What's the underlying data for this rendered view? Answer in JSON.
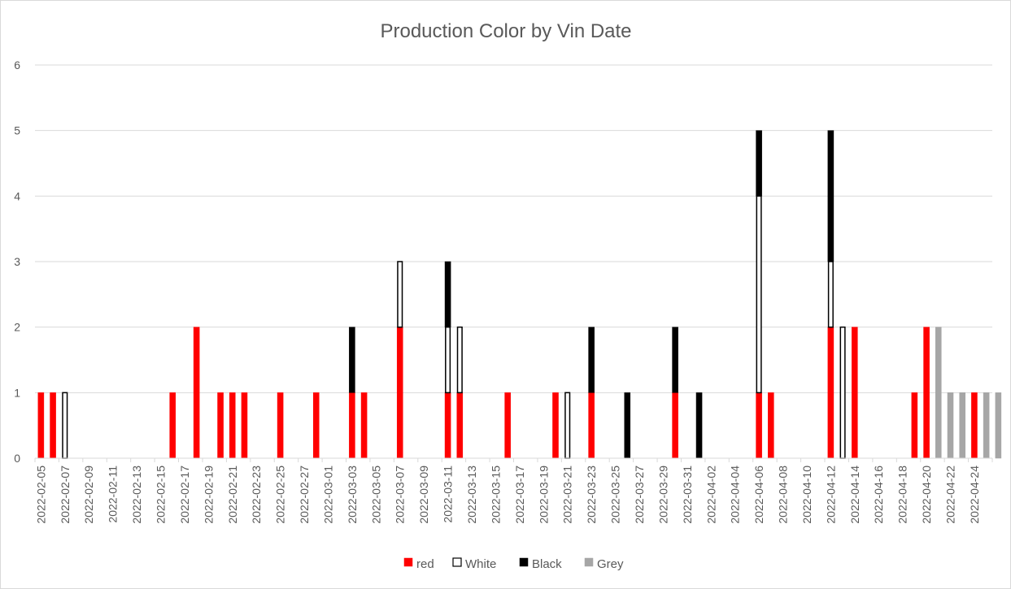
{
  "chart_data": {
    "type": "bar",
    "stacked": true,
    "title": "Production Color by Vin Date",
    "xlabel": "",
    "ylabel": "",
    "ylim": [
      0,
      6
    ],
    "yticks": [
      0,
      1,
      2,
      3,
      4,
      5,
      6
    ],
    "grid": true,
    "legend_position": "bottom",
    "start_date": "2022-02-05",
    "end_date": "2022-04-25",
    "tick_labels": [
      "2022-02-05",
      "2022-02-07",
      "2022-02-09",
      "2022-02-11",
      "2022-02-13",
      "2022-02-15",
      "2022-02-17",
      "2022-02-19",
      "2022-02-21",
      "2022-02-23",
      "2022-02-25",
      "2022-02-27",
      "2022-03-01",
      "2022-03-03",
      "2022-03-05",
      "2022-03-07",
      "2022-03-09",
      "2022-03-11",
      "2022-03-13",
      "2022-03-15",
      "2022-03-17",
      "2022-03-19",
      "2022-03-21",
      "2022-03-23",
      "2022-03-25",
      "2022-03-27",
      "2022-03-29",
      "2022-03-31",
      "2022-04-02",
      "2022-04-04",
      "2022-04-06",
      "2022-04-08",
      "2022-04-10",
      "2022-04-12",
      "2022-04-14",
      "2022-04-16",
      "2022-04-18",
      "2022-04-20",
      "2022-04-22",
      "2022-04-24"
    ],
    "series": [
      {
        "name": "red",
        "color": "#ff0000",
        "stroke": "#ff0000",
        "points": [
          [
            "2022-02-05",
            1
          ],
          [
            "2022-02-06",
            1
          ],
          [
            "2022-02-16",
            1
          ],
          [
            "2022-02-18",
            2
          ],
          [
            "2022-02-20",
            1
          ],
          [
            "2022-02-21",
            1
          ],
          [
            "2022-02-22",
            1
          ],
          [
            "2022-02-25",
            1
          ],
          [
            "2022-02-28",
            1
          ],
          [
            "2022-03-03",
            1
          ],
          [
            "2022-03-04",
            1
          ],
          [
            "2022-03-07",
            2
          ],
          [
            "2022-03-11",
            1
          ],
          [
            "2022-03-12",
            1
          ],
          [
            "2022-03-16",
            1
          ],
          [
            "2022-03-20",
            1
          ],
          [
            "2022-03-23",
            1
          ],
          [
            "2022-03-30",
            1
          ],
          [
            "2022-04-06",
            1
          ],
          [
            "2022-04-07",
            1
          ],
          [
            "2022-04-12",
            2
          ],
          [
            "2022-04-14",
            2
          ],
          [
            "2022-04-19",
            1
          ],
          [
            "2022-04-20",
            2
          ],
          [
            "2022-04-24",
            1
          ]
        ]
      },
      {
        "name": "White",
        "color": "#ffffff",
        "stroke": "#000000",
        "points": [
          [
            "2022-02-07",
            1
          ],
          [
            "2022-03-07",
            1
          ],
          [
            "2022-03-11",
            1
          ],
          [
            "2022-03-12",
            1
          ],
          [
            "2022-03-21",
            1
          ],
          [
            "2022-04-06",
            3
          ],
          [
            "2022-04-12",
            1
          ],
          [
            "2022-04-13",
            2
          ]
        ]
      },
      {
        "name": "Black",
        "color": "#000000",
        "stroke": "#000000",
        "points": [
          [
            "2022-03-03",
            1
          ],
          [
            "2022-03-11",
            1
          ],
          [
            "2022-03-23",
            1
          ],
          [
            "2022-03-26",
            1
          ],
          [
            "2022-03-30",
            1
          ],
          [
            "2022-04-01",
            1
          ],
          [
            "2022-04-06",
            1
          ],
          [
            "2022-04-12",
            2
          ]
        ]
      },
      {
        "name": "Grey",
        "color": "#a6a6a6",
        "stroke": "#a6a6a6",
        "points": [
          [
            "2022-04-21",
            2
          ],
          [
            "2022-04-22",
            1
          ],
          [
            "2022-04-23",
            1
          ],
          [
            "2022-04-25",
            1
          ],
          [
            "2022-04-26",
            1
          ]
        ]
      }
    ]
  }
}
